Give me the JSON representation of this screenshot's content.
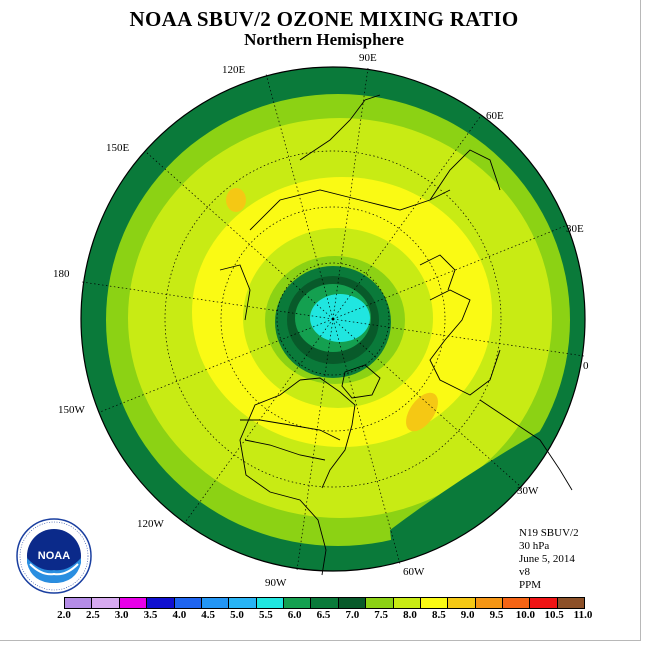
{
  "title": "NOAA SBUV/2 OZONE MIXING RATIO",
  "subtitle": "Northern Hemisphere",
  "longitude_labels": {
    "e90": "90E",
    "e120": "120E",
    "e60": "60E",
    "e150": "150E",
    "e30": "30E",
    "lon180": "180",
    "lon0": "0",
    "w150": "150W",
    "w30": "30W",
    "w120": "120W",
    "w60": "60W",
    "w90": "90W"
  },
  "info": {
    "instrument": "N19 SBUV/2",
    "level": "30 hPa",
    "date": "June 5, 2014",
    "version": "v8",
    "units": "PPM"
  },
  "logo_icon": "noaa-logo",
  "colorbar": {
    "ticks": [
      "2.0",
      "2.5",
      "3.0",
      "3.5",
      "4.0",
      "4.5",
      "5.0",
      "5.5",
      "6.0",
      "6.5",
      "7.0",
      "7.5",
      "8.0",
      "8.5",
      "9.0",
      "9.5",
      "10.0",
      "10.5",
      "11.0"
    ],
    "colors": [
      "#b48ce6",
      "#d7aaf0",
      "#e800e8",
      "#1010d0",
      "#1e64f0",
      "#2396f5",
      "#28b4f5",
      "#20e6e0",
      "#14a050",
      "#0a7a3a",
      "#085a2a",
      "#8cd214",
      "#c8eb14",
      "#fafa14",
      "#f5c814",
      "#f59614",
      "#f56414",
      "#f01414",
      "#8c5028"
    ]
  }
}
